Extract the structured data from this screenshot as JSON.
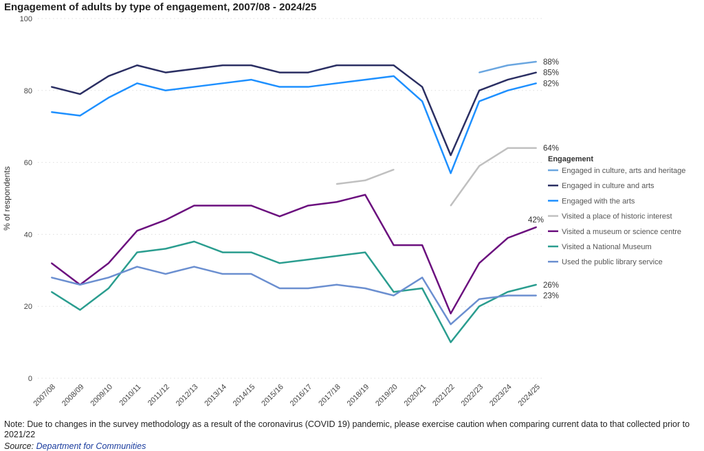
{
  "chart_data": {
    "type": "line",
    "title": "Engagement of adults by type of engagement, 2007/08 - 2024/25",
    "ylabel": "% of respondents",
    "xlabel": "",
    "ylim": [
      0,
      100
    ],
    "yticks": [
      0,
      20,
      40,
      60,
      80,
      100
    ],
    "grid": "horizontal dotted",
    "legend_title": "Engagement",
    "legend_position": "right",
    "categories": [
      "2007/08",
      "2008/09",
      "2009/10",
      "2010/11",
      "2011/12",
      "2012/13",
      "2013/14",
      "2014/15",
      "2015/16",
      "2016/17",
      "2017/18",
      "2018/19",
      "2019/20",
      "2020/21",
      "2021/22",
      "2022/23",
      "2023/24",
      "2024/25"
    ],
    "series": [
      {
        "name": "Engaged in culture, arts and heritage",
        "color": "#6aa6e0",
        "values": [
          null,
          null,
          null,
          null,
          null,
          null,
          null,
          null,
          null,
          null,
          null,
          null,
          null,
          null,
          null,
          85,
          87,
          88
        ],
        "end_label": "88%"
      },
      {
        "name": "Engaged in culture and arts",
        "color": "#2b2f63",
        "values": [
          81,
          79,
          84,
          87,
          85,
          86,
          87,
          87,
          85,
          85,
          87,
          87,
          87,
          81,
          62,
          80,
          83,
          85
        ],
        "end_label": "85%"
      },
      {
        "name": "Engaged with the arts",
        "color": "#1e90ff",
        "values": [
          74,
          73,
          78,
          82,
          80,
          81,
          82,
          83,
          81,
          81,
          82,
          83,
          84,
          77,
          57,
          77,
          80,
          82
        ],
        "end_label": "82%"
      },
      {
        "name": "Visited a place of historic interest",
        "color": "#c0c0c0",
        "values": [
          null,
          null,
          null,
          null,
          null,
          null,
          null,
          null,
          null,
          null,
          54,
          55,
          58,
          null,
          48,
          59,
          64,
          64
        ],
        "end_label": "64%"
      },
      {
        "name": "Visited a museum or science centre",
        "color": "#6b0f7e",
        "values": [
          32,
          26,
          32,
          41,
          44,
          48,
          48,
          48,
          45,
          48,
          49,
          51,
          37,
          37,
          18,
          32,
          39,
          42
        ],
        "end_label": "42%"
      },
      {
        "name": "Visited a National Museum",
        "color": "#2a9d8f",
        "values": [
          24,
          19,
          25,
          35,
          36,
          38,
          35,
          35,
          32,
          33,
          34,
          35,
          24,
          25,
          10,
          20,
          24,
          26
        ],
        "end_label": "26%"
      },
      {
        "name": "Used the public library service",
        "color": "#6b8fd0",
        "values": [
          28,
          26,
          28,
          31,
          29,
          31,
          29,
          29,
          25,
          25,
          26,
          25,
          23,
          28,
          15,
          22,
          23,
          23
        ],
        "end_label": "23%"
      }
    ]
  },
  "footer": {
    "note": "Note: Due to changes in the survey methodology as a result of the coronavirus (COVID 19) pandemic, please exercise caution when comparing current data to that collected prior to",
    "note_cont": "2021/22",
    "source_label": "Source:",
    "source_link": "Department for Communities"
  }
}
